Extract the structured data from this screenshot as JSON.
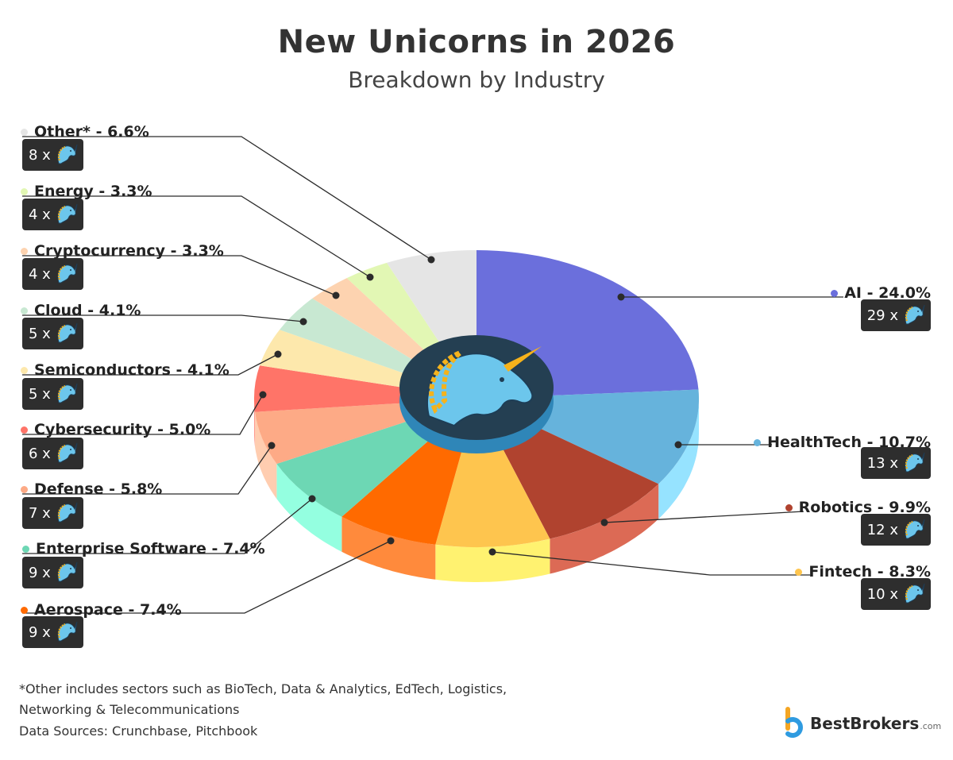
{
  "header": {
    "title": "New Unicorns in 2026",
    "subtitle": "Breakdown by Industry"
  },
  "chart_data": {
    "type": "pie",
    "style": "3d",
    "center_icon": "unicorn-head-icon",
    "multiplier_icon": "unicorn-icon",
    "slices": [
      {
        "label": "AI - 24.0%",
        "name": "AI",
        "value": 24.0,
        "count": "29 x",
        "color": "#6b6fdc",
        "side_color": "#8e91e4"
      },
      {
        "label": "HealthTech - 10.7%",
        "name": "HealthTech",
        "value": 10.7,
        "count": "13 x",
        "color": "#66b3dc",
        "side_color": "#96e3ff"
      },
      {
        "label": "Robotics - 9.9%",
        "name": "Robotics",
        "value": 9.9,
        "count": "12 x",
        "color": "#b0432f",
        "side_color": "#dc6a55"
      },
      {
        "label": "Fintech - 8.3%",
        "name": "Fintech",
        "value": 8.3,
        "count": "10 x",
        "color": "#fec54e",
        "side_color": "#fff270"
      },
      {
        "label": "Aerospace - 7.4%",
        "name": "Aerospace",
        "value": 7.4,
        "count": "9 x",
        "color": "#ff6a00",
        "side_color": "#ff8a3c"
      },
      {
        "label": "Enterprise Software - 7.4%",
        "name": "Enterprise Software",
        "value": 7.4,
        "count": "9 x",
        "color": "#6dd7b4",
        "side_color": "#94ffe0"
      },
      {
        "label": "Defense - 5.8%",
        "name": "Defense",
        "value": 5.8,
        "count": "7 x",
        "color": "#fdaa86",
        "side_color": "#ffcdb0"
      },
      {
        "label": "Cybersecurity - 5.0%",
        "name": "Cybersecurity",
        "value": 5.0,
        "count": "6 x",
        "color": "#ff7468",
        "side_color": "#ff9a8f"
      },
      {
        "label": "Semiconductors - 4.1%",
        "name": "Semiconductors",
        "value": 4.1,
        "count": "5 x",
        "color": "#fde8ac",
        "side_color": "#fff3cc"
      },
      {
        "label": "Cloud - 4.1%",
        "name": "Cloud",
        "value": 4.1,
        "count": "5 x",
        "color": "#c8e8d2",
        "side_color": "#e0f5e8"
      },
      {
        "label": "Cryptocurrency - 3.3%",
        "name": "Cryptocurrency",
        "value": 3.3,
        "count": "4 x",
        "color": "#fdd3b0",
        "side_color": "#ffe6d2"
      },
      {
        "label": "Energy - 3.3%",
        "name": "Energy",
        "value": 3.3,
        "count": "4 x",
        "color": "#e2f7b4",
        "side_color": "#f0ffd2"
      },
      {
        "label": "Other* - 6.6%",
        "name": "Other*",
        "value": 6.6,
        "count": "8 x",
        "color": "#e5e5e5",
        "side_color": "#f2f2f2"
      }
    ]
  },
  "footer": {
    "note_line1": "*Other includes sectors such as BioTech, Data & Analytics, EdTech, Logistics,",
    "note_line2": "Networking & Telecommunications",
    "sources": "Data Sources: Crunchbase, Pitchbook"
  },
  "brand": {
    "name": "BestBrokers",
    "suffix": ".com",
    "logo_icon": "bestbrokers-logo-icon"
  }
}
